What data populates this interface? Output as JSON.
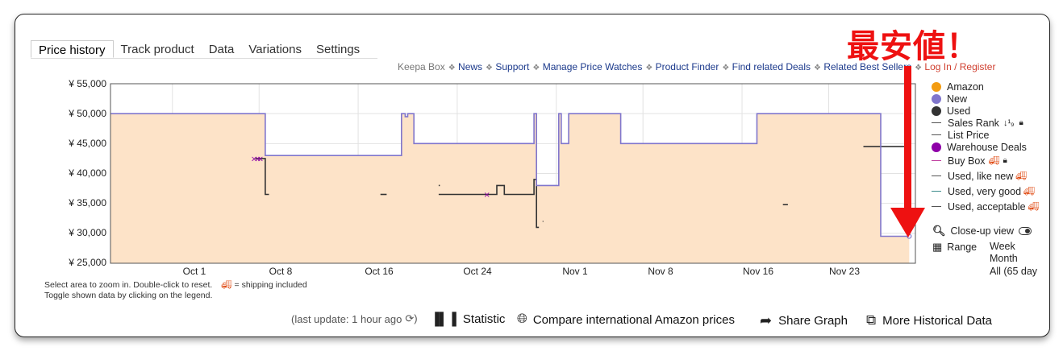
{
  "tabs": [
    "Price history",
    "Track product",
    "Data",
    "Variations",
    "Settings"
  ],
  "links": [
    {
      "label": "Keepa Box",
      "style": "muted"
    },
    {
      "label": "News",
      "style": "link"
    },
    {
      "label": "Support",
      "style": "link"
    },
    {
      "label": "Manage Price Watches",
      "style": "link"
    },
    {
      "label": "Product Finder",
      "style": "link"
    },
    {
      "label": "Find related Deals",
      "style": "link"
    },
    {
      "label": "Related Best Sellers",
      "style": "link"
    },
    {
      "label": "Log In / Register",
      "style": "red"
    }
  ],
  "annotation": "最安値！",
  "legend": {
    "amazon": "Amazon",
    "new": "New",
    "used": "Used",
    "sales_rank": "Sales Rank",
    "list_price": "List Price",
    "warehouse": "Warehouse Deals",
    "buy_box": "Buy Box",
    "used_like_new": "Used, like new",
    "used_very_good": "Used, very good",
    "used_acceptable": "Used, acceptable"
  },
  "tools": {
    "closeup": "Close-up view",
    "range": "Range",
    "range_week": "Week",
    "range_month": "Month",
    "range_all": "All (65 day"
  },
  "notes": {
    "line1": "Select area to zoom in. Double-click to reset.",
    "shipping": "= shipping included",
    "line2": "Toggle shown data by clicking on the legend."
  },
  "bottom": {
    "last_update": "(last update: 1 hour ago",
    "statistic": "Statistic",
    "compare": "Compare international Amazon prices",
    "share": "Share Graph",
    "more": "More Historical Data"
  },
  "colors": {
    "amazon": "#f39c12",
    "new": "#8076cc",
    "used": "#333333",
    "warehouse": "#8e00a8",
    "buybox": "#c040a0",
    "fill": "#fde3c8",
    "arrow": "#ee1111"
  },
  "chart_data": {
    "type": "line",
    "ylim": [
      25000,
      55000
    ],
    "y_ticks": [
      "¥ 55,000",
      "¥ 50,000",
      "¥ 45,000",
      "¥ 40,000",
      "¥ 35,000",
      "¥ 30,000",
      "¥ 25,000"
    ],
    "x_ticks": [
      "Oct 1",
      "Oct 8",
      "Oct 16",
      "Oct 24",
      "Nov 1",
      "Nov 8",
      "Nov 16",
      "Nov 23"
    ],
    "x_tick_days": [
      5,
      12,
      20,
      28,
      36,
      43,
      51,
      58
    ],
    "x_range_days": [
      0,
      65
    ],
    "series": [
      {
        "name": "New",
        "type": "step",
        "points": [
          [
            0,
            50000
          ],
          [
            12.5,
            50000
          ],
          [
            12.5,
            43000
          ],
          [
            23.5,
            43000
          ],
          [
            23.5,
            50000
          ],
          [
            23.8,
            50000
          ],
          [
            23.8,
            49500
          ],
          [
            24,
            49500
          ],
          [
            24,
            50000
          ],
          [
            24.5,
            50000
          ],
          [
            24.5,
            45000
          ],
          [
            34.2,
            45000
          ],
          [
            34.2,
            50000
          ],
          [
            34.4,
            50000
          ],
          [
            34.4,
            38000
          ],
          [
            36.2,
            38000
          ],
          [
            36.2,
            50000
          ],
          [
            36.4,
            50000
          ],
          [
            36.4,
            45000
          ],
          [
            37,
            45000
          ],
          [
            37,
            50000
          ],
          [
            41.2,
            50000
          ],
          [
            41.2,
            45000
          ],
          [
            52.2,
            45000
          ],
          [
            52.2,
            50000
          ],
          [
            62.2,
            50000
          ],
          [
            62.2,
            29500
          ],
          [
            64.5,
            29500
          ]
        ]
      },
      {
        "name": "Used",
        "segments": [
          [
            [
              11.7,
              42500
            ],
            [
              12.5,
              42500
            ],
            [
              12.5,
              36500
            ],
            [
              12.8,
              36500
            ]
          ],
          [
            [
              21.8,
              36500
            ],
            [
              22.3,
              36500
            ]
          ],
          [
            [
              26.5,
              38000
            ],
            [
              26.6,
              38000
            ]
          ],
          [
            [
              26.5,
              36500
            ],
            [
              31.2,
              36500
            ],
            [
              31.2,
              38000
            ],
            [
              31.8,
              38000
            ],
            [
              31.8,
              36500
            ],
            [
              34.2,
              36500
            ],
            [
              34.2,
              39000
            ],
            [
              34.4,
              39000
            ],
            [
              34.4,
              31000
            ],
            [
              34.6,
              31000
            ]
          ],
          [
            [
              34.9,
              32000
            ],
            [
              34.95,
              32000
            ]
          ],
          [
            [
              54.3,
              34800
            ],
            [
              54.7,
              34800
            ]
          ],
          [
            [
              60.8,
              44500
            ],
            [
              64.5,
              44500
            ]
          ]
        ]
      },
      {
        "name": "Warehouse Deals",
        "markers": [
          [
            11.6,
            42500
          ],
          [
            11.9,
            42500
          ],
          [
            12.1,
            42500
          ],
          [
            30.4,
            36500
          ]
        ]
      }
    ]
  }
}
